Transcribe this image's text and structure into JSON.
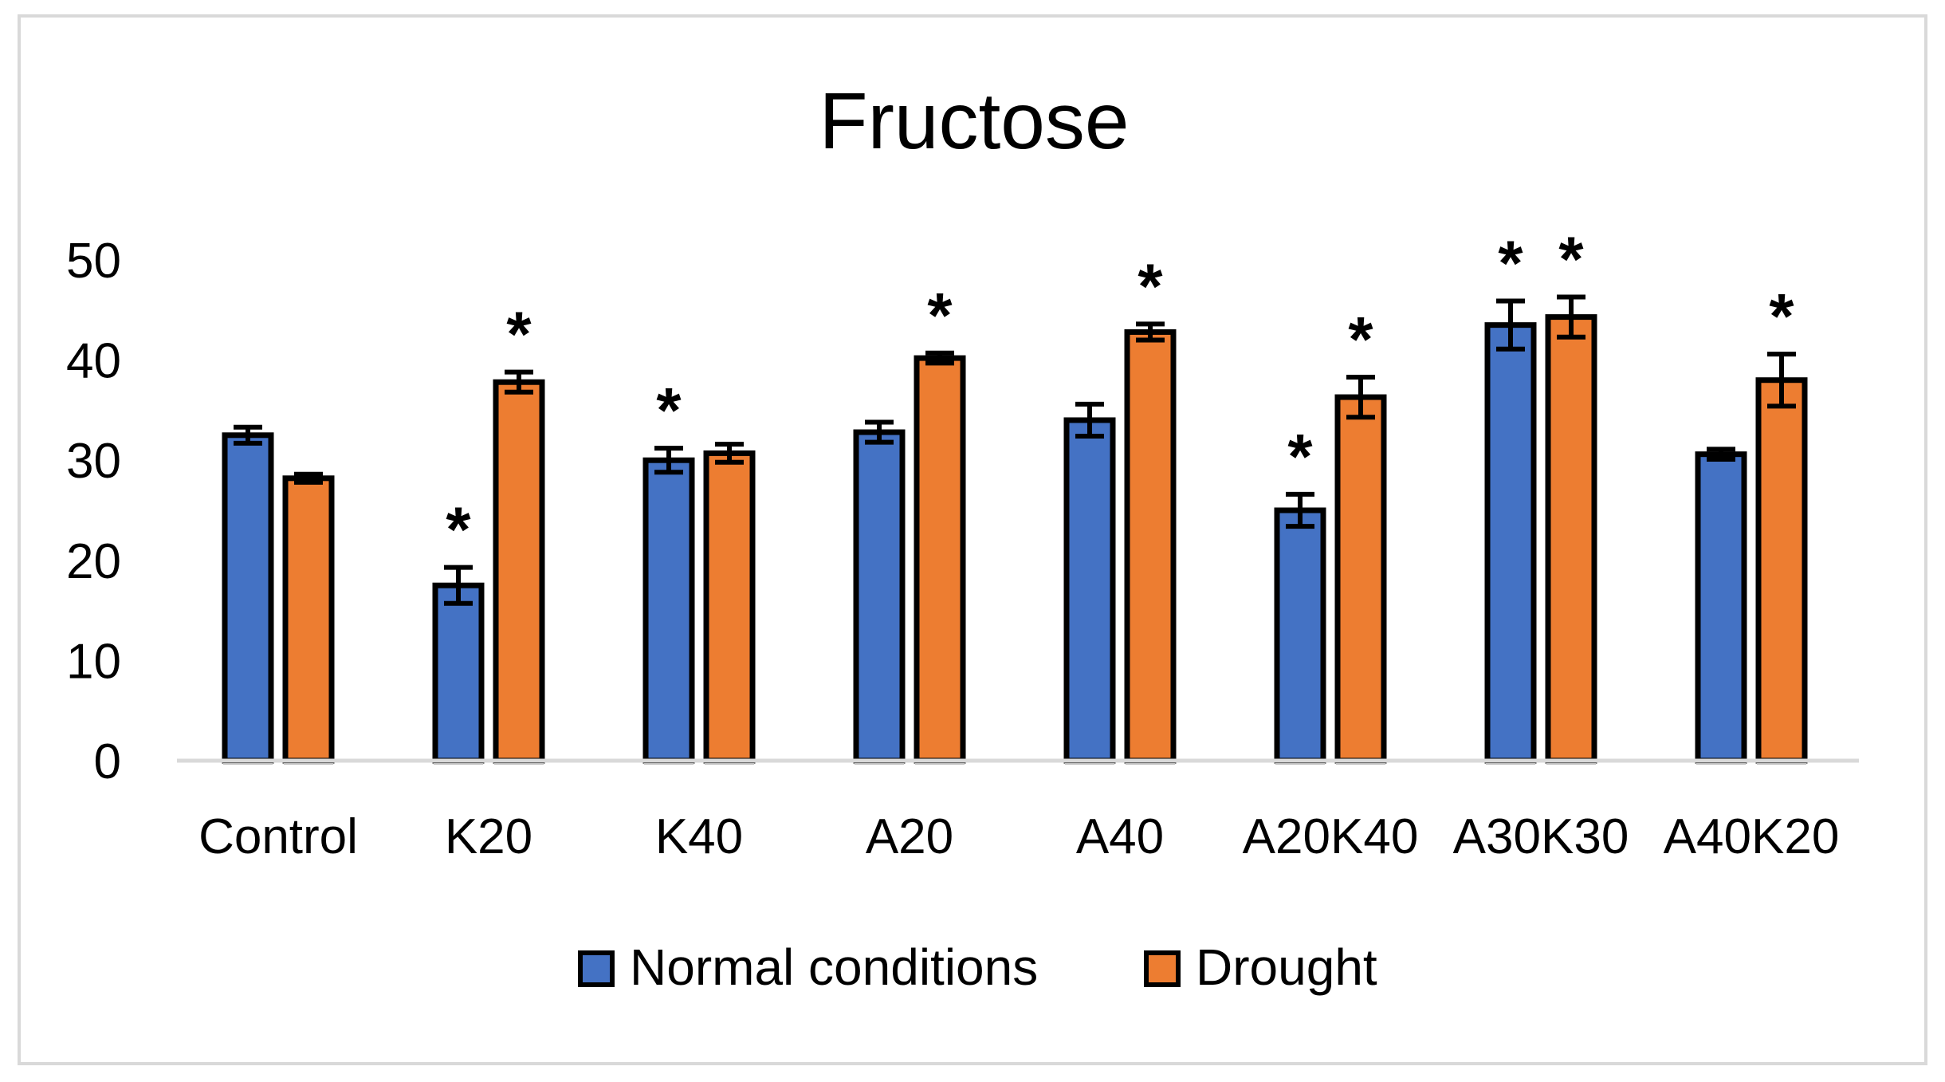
{
  "chart_data": {
    "type": "bar",
    "title": "Fructose",
    "xlabel": "",
    "ylabel": "",
    "ylim": [
      0,
      50
    ],
    "yticks": [
      0,
      10,
      20,
      30,
      40,
      50
    ],
    "grid": false,
    "legend_position": "bottom",
    "categories": [
      "Control",
      "K20",
      "K40",
      "A20",
      "A40",
      "A20K40",
      "A30K30",
      "A40K20"
    ],
    "series": [
      {
        "name": "Normal conditions",
        "color": "#4472c4",
        "values": [
          32.5,
          17.5,
          30.0,
          32.8,
          34.0,
          25.0,
          43.5,
          30.6
        ],
        "errors": [
          0.8,
          1.8,
          1.2,
          1.0,
          1.6,
          1.6,
          2.4,
          0.5
        ],
        "significant": [
          false,
          true,
          true,
          false,
          false,
          true,
          true,
          false
        ]
      },
      {
        "name": "Drought",
        "color": "#ed7d31",
        "values": [
          28.2,
          37.8,
          30.7,
          40.2,
          42.8,
          36.3,
          44.3,
          38.0
        ],
        "errors": [
          0.4,
          1.0,
          0.9,
          0.5,
          0.8,
          2.0,
          2.0,
          2.6
        ],
        "significant": [
          false,
          true,
          false,
          true,
          true,
          true,
          true,
          true
        ]
      }
    ],
    "significance_marker": "*"
  }
}
